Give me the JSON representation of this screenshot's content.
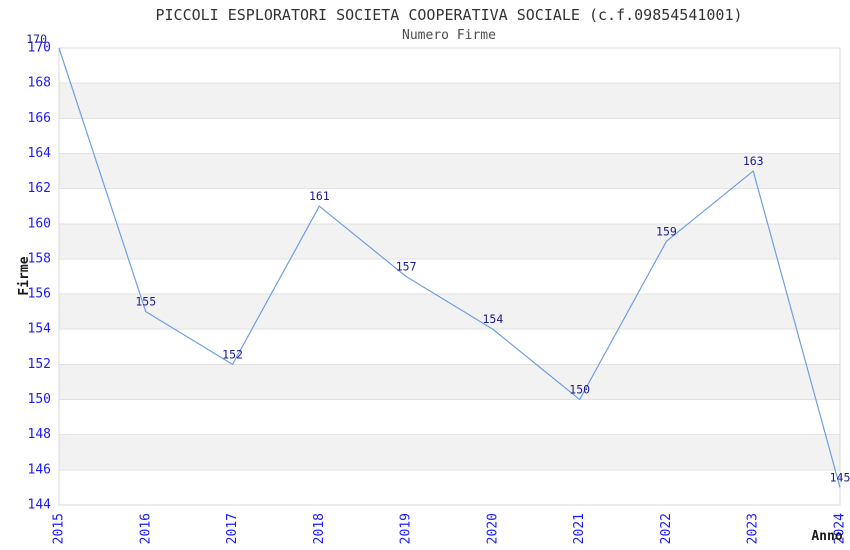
{
  "chart_data": {
    "type": "line",
    "title": "PICCOLI ESPLORATORI SOCIETA COOPERATIVA SOCIALE (c.f.09854541001)",
    "subtitle": "Numero Firme",
    "xlabel": "Anno",
    "ylabel": "Firme",
    "x": [
      2015,
      2016,
      2017,
      2018,
      2019,
      2020,
      2021,
      2022,
      2023,
      2024
    ],
    "series": [
      {
        "name": "Numero Firme",
        "values": [
          170,
          155,
          152,
          161,
          157,
          154,
          150,
          159,
          163,
          145
        ]
      }
    ],
    "ylim": [
      144,
      170
    ],
    "ytick_step": 2,
    "grid": "horizontal",
    "banding": true,
    "legend": false,
    "data_labels": true,
    "colors": {
      "line": "#6e9fe0",
      "tick_label": "#1a1aff",
      "data_label": "#1c1c8f",
      "title": "#333333",
      "subtitle": "#4d4d4d",
      "axis_label": "#1a1a1a",
      "band": "#f2f2f2",
      "grid_line": "#e2e2e2",
      "spine": "#d8d8d8",
      "background": "#ffffff"
    }
  }
}
